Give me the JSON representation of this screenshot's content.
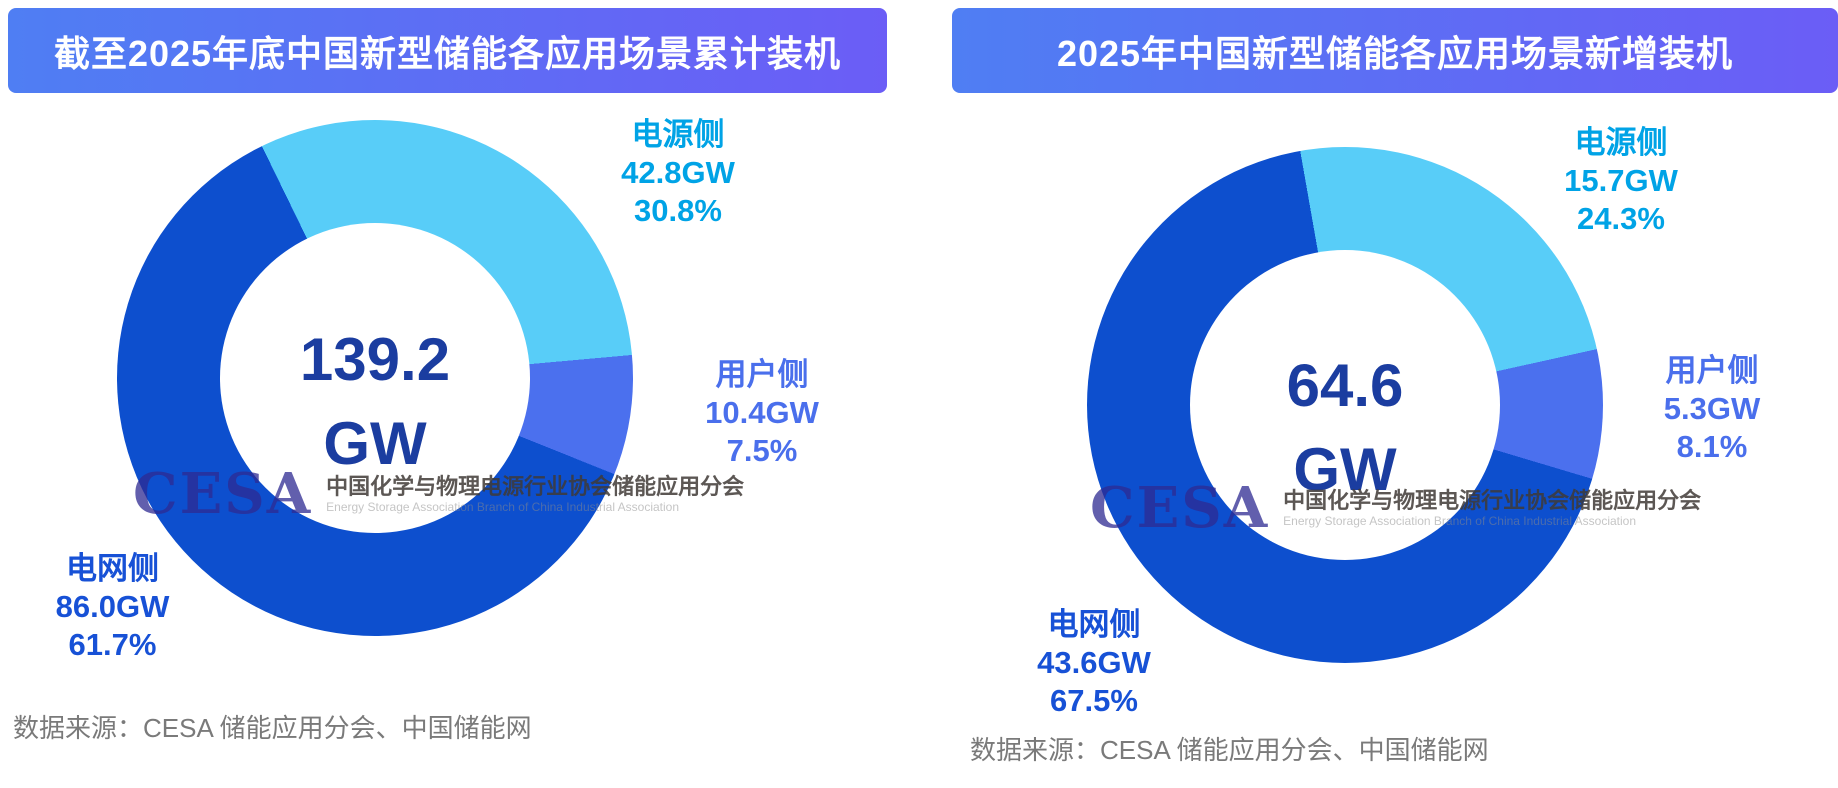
{
  "colors": {
    "background": "#FFFFFF",
    "header_gradient_start": "#4F7EF3",
    "header_gradient_end": "#6B5DF6",
    "slices": [
      "#58CDF8",
      "#4B70EE",
      "#0D4FCE"
    ],
    "center_text": "#1B3DA0",
    "label_power": "#00A3E6",
    "label_user": "#4A6FEC",
    "label_grid": "#1751D6",
    "source_text": "#7A7A7A"
  },
  "watermark": {
    "logo": "CESA",
    "cn": "中国化学与物理电源行业协会储能应用分会",
    "en": "Energy Storage Association Branch of China Industrial Association"
  },
  "chart_data": [
    {
      "type": "pie",
      "subtype": "donut",
      "title": "截至2025年底中国新型储能各应用场景累计装机",
      "center_value": "139.2",
      "center_unit": "GW",
      "total_gw": 139.2,
      "start_angle_deg": -26,
      "legend_position": "around",
      "series": [
        {
          "name": "电源侧",
          "value_gw": 42.8,
          "pct": 30.8,
          "value_label": "42.8GW",
          "pct_label": "30.8%"
        },
        {
          "name": "用户侧",
          "value_gw": 10.4,
          "pct": 7.5,
          "value_label": "10.4GW",
          "pct_label": "7.5%"
        },
        {
          "name": "电网侧",
          "value_gw": 86.0,
          "pct": 61.7,
          "value_label": "86.0GW",
          "pct_label": "61.7%"
        }
      ],
      "source": "数据来源：CESA 储能应用分会、中国储能网"
    },
    {
      "type": "pie",
      "subtype": "donut",
      "title": "2025年中国新型储能各应用场景新增装机",
      "center_value": "64.6",
      "center_unit": "GW",
      "total_gw": 64.6,
      "start_angle_deg": -10,
      "legend_position": "around",
      "series": [
        {
          "name": "电源侧",
          "value_gw": 15.7,
          "pct": 24.3,
          "value_label": "15.7GW",
          "pct_label": "24.3%"
        },
        {
          "name": "用户侧",
          "value_gw": 5.3,
          "pct": 8.1,
          "value_label": "5.3GW",
          "pct_label": "8.1%"
        },
        {
          "name": "电网侧",
          "value_gw": 43.6,
          "pct": 67.5,
          "value_label": "43.6GW",
          "pct_label": "67.5%"
        }
      ],
      "source": "数据来源：CESA 储能应用分会、中国储能网"
    }
  ]
}
